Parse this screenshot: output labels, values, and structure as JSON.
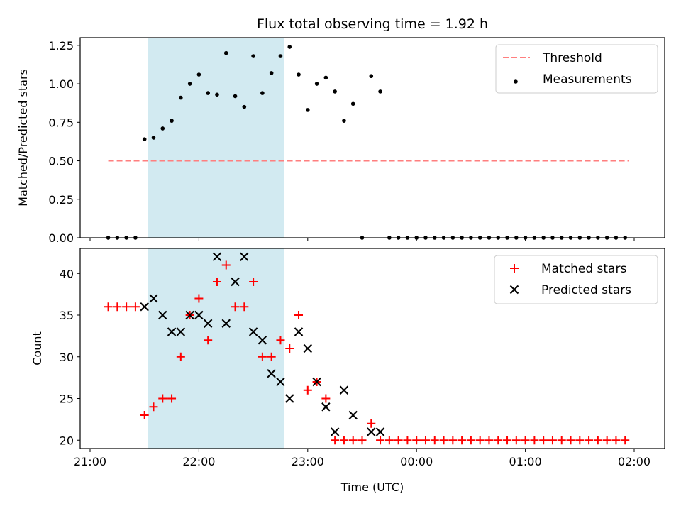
{
  "chart_data": [
    {
      "type": "scatter",
      "title": "Flux total observing time = 1.92 h",
      "ylabel": "Matched/Predicted stars",
      "xlabel": "",
      "x_unit": "UTC time",
      "xlim": [
        "21:00",
        "02:00"
      ],
      "ylim": [
        0,
        1.3
      ],
      "yticks": [
        0.0,
        0.25,
        0.5,
        0.75,
        1.0,
        1.25
      ],
      "ytick_labels": [
        "0.00",
        "0.25",
        "0.50",
        "0.75",
        "1.00",
        "1.25"
      ],
      "grid": false,
      "legend": "top-right",
      "shaded_interval": {
        "start": "21:32",
        "end": "22:47",
        "color": "#add8e6"
      },
      "threshold": {
        "name": "Threshold",
        "value": 0.5,
        "x_start": "21:10",
        "x_end": "01:57",
        "color": "#ff7f7f",
        "style": "dashed"
      },
      "series": [
        {
          "name": "Measurements",
          "marker": "dot",
          "color": "#000000",
          "points": [
            [
              "21:10",
              0.0
            ],
            [
              "21:15",
              0.0
            ],
            [
              "21:20",
              0.0
            ],
            [
              "21:25",
              0.0
            ],
            [
              "21:30",
              0.64
            ],
            [
              "21:35",
              0.65
            ],
            [
              "21:40",
              0.71
            ],
            [
              "21:45",
              0.76
            ],
            [
              "21:50",
              0.91
            ],
            [
              "21:55",
              1.0
            ],
            [
              "22:00",
              1.06
            ],
            [
              "22:05",
              0.94
            ],
            [
              "22:10",
              0.93
            ],
            [
              "22:15",
              1.2
            ],
            [
              "22:20",
              0.92
            ],
            [
              "22:25",
              0.85
            ],
            [
              "22:30",
              1.18
            ],
            [
              "22:35",
              0.94
            ],
            [
              "22:40",
              1.07
            ],
            [
              "22:45",
              1.18
            ],
            [
              "22:50",
              1.24
            ],
            [
              "22:55",
              1.06
            ],
            [
              "23:00",
              0.83
            ],
            [
              "23:05",
              1.0
            ],
            [
              "23:10",
              1.04
            ],
            [
              "23:15",
              0.95
            ],
            [
              "23:20",
              0.76
            ],
            [
              "23:25",
              0.87
            ],
            [
              "23:30",
              0.0
            ],
            [
              "23:35",
              1.05
            ],
            [
              "23:40",
              0.95
            ],
            [
              "23:45",
              0.0
            ],
            [
              "23:50",
              0.0
            ],
            [
              "23:55",
              0.0
            ],
            [
              "00:00",
              0.0
            ],
            [
              "00:05",
              0.0
            ],
            [
              "00:10",
              0.0
            ],
            [
              "00:15",
              0.0
            ],
            [
              "00:20",
              0.0
            ],
            [
              "00:25",
              0.0
            ],
            [
              "00:30",
              0.0
            ],
            [
              "00:35",
              0.0
            ],
            [
              "00:40",
              0.0
            ],
            [
              "00:45",
              0.0
            ],
            [
              "00:50",
              0.0
            ],
            [
              "00:55",
              0.0
            ],
            [
              "01:00",
              0.0
            ],
            [
              "01:05",
              0.0
            ],
            [
              "01:10",
              0.0
            ],
            [
              "01:15",
              0.0
            ],
            [
              "01:20",
              0.0
            ],
            [
              "01:25",
              0.0
            ],
            [
              "01:30",
              0.0
            ],
            [
              "01:35",
              0.0
            ],
            [
              "01:40",
              0.0
            ],
            [
              "01:45",
              0.0
            ],
            [
              "01:50",
              0.0
            ],
            [
              "01:55",
              0.0
            ]
          ]
        }
      ]
    },
    {
      "type": "scatter",
      "title": "",
      "ylabel": "Count",
      "xlabel": "Time (UTC)",
      "xlim": [
        "21:00",
        "02:00"
      ],
      "xticks": [
        "21:00",
        "22:00",
        "23:00",
        "00:00",
        "01:00",
        "02:00"
      ],
      "ylim": [
        19,
        43
      ],
      "yticks": [
        20,
        25,
        30,
        35,
        40
      ],
      "grid": false,
      "legend": "top-right",
      "shaded_interval": {
        "start": "21:32",
        "end": "22:47",
        "color": "#add8e6"
      },
      "series": [
        {
          "name": "Matched stars",
          "marker": "plus",
          "color": "#ff0000",
          "points": [
            [
              "21:10",
              36
            ],
            [
              "21:15",
              36
            ],
            [
              "21:20",
              36
            ],
            [
              "21:25",
              36
            ],
            [
              "21:30",
              23
            ],
            [
              "21:35",
              24
            ],
            [
              "21:40",
              25
            ],
            [
              "21:45",
              25
            ],
            [
              "21:50",
              30
            ],
            [
              "21:55",
              35
            ],
            [
              "22:00",
              37
            ],
            [
              "22:05",
              32
            ],
            [
              "22:10",
              39
            ],
            [
              "22:15",
              41
            ],
            [
              "22:20",
              36
            ],
            [
              "22:25",
              36
            ],
            [
              "22:30",
              39
            ],
            [
              "22:35",
              30
            ],
            [
              "22:40",
              30
            ],
            [
              "22:45",
              32
            ],
            [
              "22:50",
              31
            ],
            [
              "22:55",
              35
            ],
            [
              "23:00",
              26
            ],
            [
              "23:05",
              27
            ],
            [
              "23:10",
              25
            ],
            [
              "23:15",
              20
            ],
            [
              "23:20",
              20
            ],
            [
              "23:25",
              20
            ],
            [
              "23:30",
              20
            ],
            [
              "23:35",
              22
            ],
            [
              "23:40",
              20
            ],
            [
              "23:45",
              20
            ],
            [
              "23:50",
              20
            ],
            [
              "23:55",
              20
            ],
            [
              "00:00",
              20
            ],
            [
              "00:05",
              20
            ],
            [
              "00:10",
              20
            ],
            [
              "00:15",
              20
            ],
            [
              "00:20",
              20
            ],
            [
              "00:25",
              20
            ],
            [
              "00:30",
              20
            ],
            [
              "00:35",
              20
            ],
            [
              "00:40",
              20
            ],
            [
              "00:45",
              20
            ],
            [
              "00:50",
              20
            ],
            [
              "00:55",
              20
            ],
            [
              "01:00",
              20
            ],
            [
              "01:05",
              20
            ],
            [
              "01:10",
              20
            ],
            [
              "01:15",
              20
            ],
            [
              "01:20",
              20
            ],
            [
              "01:25",
              20
            ],
            [
              "01:30",
              20
            ],
            [
              "01:35",
              20
            ],
            [
              "01:40",
              20
            ],
            [
              "01:45",
              20
            ],
            [
              "01:50",
              20
            ],
            [
              "01:55",
              20
            ]
          ]
        },
        {
          "name": "Predicted stars",
          "marker": "x",
          "color": "#000000",
          "points": [
            [
              "21:30",
              36
            ],
            [
              "21:35",
              37
            ],
            [
              "21:40",
              35
            ],
            [
              "21:45",
              33
            ],
            [
              "21:50",
              33
            ],
            [
              "21:55",
              35
            ],
            [
              "22:00",
              35
            ],
            [
              "22:05",
              34
            ],
            [
              "22:10",
              42
            ],
            [
              "22:15",
              34
            ],
            [
              "22:20",
              39
            ],
            [
              "22:25",
              42
            ],
            [
              "22:30",
              33
            ],
            [
              "22:35",
              32
            ],
            [
              "22:40",
              28
            ],
            [
              "22:45",
              27
            ],
            [
              "22:50",
              25
            ],
            [
              "22:55",
              33
            ],
            [
              "23:00",
              31
            ],
            [
              "23:05",
              27
            ],
            [
              "23:10",
              24
            ],
            [
              "23:15",
              21
            ],
            [
              "23:20",
              26
            ],
            [
              "23:25",
              23
            ],
            [
              "23:35",
              21
            ],
            [
              "23:40",
              21
            ]
          ]
        }
      ]
    }
  ]
}
